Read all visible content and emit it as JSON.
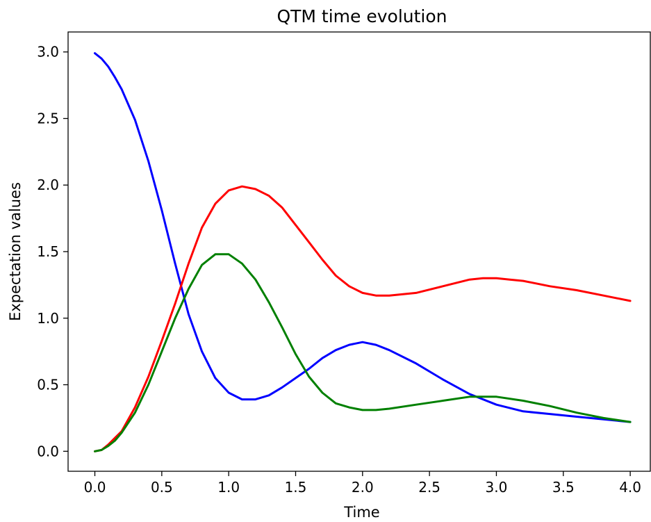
{
  "chart_data": {
    "type": "line",
    "title": "QTM time evolution",
    "xlabel": "Time",
    "ylabel": "Expectation values",
    "xlim": [
      -0.2,
      4.15
    ],
    "ylim": [
      -0.15,
      3.15
    ],
    "xticks": [
      0.0,
      0.5,
      1.0,
      1.5,
      2.0,
      2.5,
      3.0,
      3.5,
      4.0
    ],
    "xtick_labels": [
      "0.0",
      "0.5",
      "1.0",
      "1.5",
      "2.0",
      "2.5",
      "3.0",
      "3.5",
      "4.0"
    ],
    "yticks": [
      0.0,
      0.5,
      1.0,
      1.5,
      2.0,
      2.5,
      3.0
    ],
    "ytick_labels": [
      "0.0",
      "0.5",
      "1.0",
      "1.5",
      "2.0",
      "2.5",
      "3.0"
    ],
    "grid": false,
    "legend": false,
    "series": [
      {
        "color": "#0000ff",
        "x": [
          0.0,
          0.05,
          0.1,
          0.15,
          0.2,
          0.3,
          0.4,
          0.5,
          0.6,
          0.7,
          0.8,
          0.9,
          1.0,
          1.1,
          1.2,
          1.3,
          1.4,
          1.5,
          1.6,
          1.7,
          1.8,
          1.9,
          2.0,
          2.1,
          2.2,
          2.4,
          2.6,
          2.8,
          3.0,
          3.2,
          3.4,
          3.6,
          3.8,
          4.0
        ],
        "y": [
          2.99,
          2.95,
          2.89,
          2.81,
          2.72,
          2.49,
          2.18,
          1.81,
          1.41,
          1.03,
          0.75,
          0.55,
          0.44,
          0.39,
          0.39,
          0.42,
          0.48,
          0.55,
          0.62,
          0.7,
          0.76,
          0.8,
          0.82,
          0.8,
          0.76,
          0.66,
          0.54,
          0.43,
          0.35,
          0.3,
          0.28,
          0.26,
          0.24,
          0.22
        ]
      },
      {
        "color": "#ff0000",
        "x": [
          0.0,
          0.05,
          0.1,
          0.15,
          0.2,
          0.3,
          0.4,
          0.5,
          0.6,
          0.7,
          0.8,
          0.9,
          1.0,
          1.1,
          1.2,
          1.3,
          1.4,
          1.5,
          1.6,
          1.7,
          1.8,
          1.9,
          2.0,
          2.1,
          2.2,
          2.4,
          2.6,
          2.8,
          2.9,
          3.0,
          3.1,
          3.2,
          3.4,
          3.6,
          3.8,
          4.0
        ],
        "y": [
          0.0,
          0.01,
          0.05,
          0.1,
          0.15,
          0.33,
          0.56,
          0.83,
          1.11,
          1.41,
          1.68,
          1.86,
          1.96,
          1.99,
          1.97,
          1.92,
          1.83,
          1.7,
          1.57,
          1.44,
          1.32,
          1.24,
          1.19,
          1.17,
          1.17,
          1.19,
          1.24,
          1.29,
          1.3,
          1.3,
          1.29,
          1.28,
          1.24,
          1.21,
          1.17,
          1.13
        ]
      },
      {
        "color": "#008000",
        "x": [
          0.0,
          0.05,
          0.1,
          0.15,
          0.2,
          0.3,
          0.4,
          0.5,
          0.6,
          0.7,
          0.8,
          0.9,
          1.0,
          1.1,
          1.2,
          1.3,
          1.4,
          1.5,
          1.6,
          1.7,
          1.8,
          1.9,
          2.0,
          2.1,
          2.2,
          2.4,
          2.6,
          2.8,
          3.0,
          3.2,
          3.4,
          3.6,
          3.8,
          4.0
        ],
        "y": [
          0.0,
          0.01,
          0.04,
          0.08,
          0.14,
          0.29,
          0.5,
          0.75,
          1.0,
          1.22,
          1.4,
          1.48,
          1.48,
          1.41,
          1.29,
          1.12,
          0.93,
          0.73,
          0.56,
          0.44,
          0.36,
          0.33,
          0.31,
          0.31,
          0.32,
          0.35,
          0.38,
          0.41,
          0.41,
          0.38,
          0.34,
          0.29,
          0.25,
          0.22
        ]
      }
    ]
  }
}
